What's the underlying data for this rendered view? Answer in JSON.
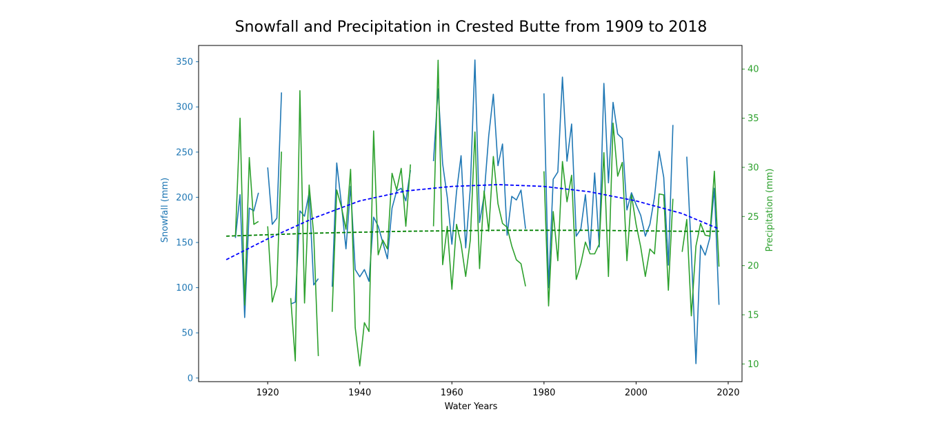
{
  "chart_data": {
    "type": "line",
    "title": "Snowfall and Precipitation in Crested Butte from 1909 to 2018",
    "xlabel": "Water Years",
    "ylabel_left": "Snowfall (mm)",
    "ylabel_right": "Precipitation (mm)",
    "xlim": [
      1905,
      2023
    ],
    "ylim_left": [
      -4,
      368
    ],
    "ylim_right": [
      8.2,
      42.4
    ],
    "x_ticks": [
      1920,
      1940,
      1960,
      1980,
      2000,
      2020
    ],
    "y_ticks_left": [
      0,
      50,
      100,
      150,
      200,
      250,
      300,
      350
    ],
    "y_ticks_right": [
      10,
      15,
      20,
      25,
      30,
      35,
      40
    ],
    "grid": false,
    "colors": {
      "snowfall": "#1f77b4",
      "precipitation": "#2ca02c",
      "snowfall_trend": "#0000ff",
      "precipitation_trend": "#008000"
    },
    "series": [
      {
        "axis": "left",
        "style": "solid",
        "color": "#1f77b4",
        "points": [
          [
            1913,
            155
          ],
          [
            1914,
            203
          ],
          [
            1915,
            67
          ],
          [
            1916,
            188
          ],
          [
            1917,
            185
          ],
          [
            1918,
            205
          ],
          [
            1919,
            null
          ],
          [
            1920,
            233
          ],
          [
            1921,
            170
          ],
          [
            1922,
            177
          ],
          [
            1923,
            316
          ],
          [
            1924,
            null
          ],
          [
            1925,
            82
          ],
          [
            1926,
            84
          ],
          [
            1927,
            185
          ],
          [
            1928,
            179
          ],
          [
            1929,
            205
          ],
          [
            1930,
            103
          ],
          [
            1931,
            110
          ],
          [
            1932,
            null
          ],
          [
            1934,
            101
          ],
          [
            1935,
            238
          ],
          [
            1936,
            193
          ],
          [
            1937,
            143
          ],
          [
            1938,
            212
          ],
          [
            1939,
            120
          ],
          [
            1940,
            112
          ],
          [
            1941,
            120
          ],
          [
            1942,
            107
          ],
          [
            1943,
            178
          ],
          [
            1944,
            168
          ],
          [
            1945,
            150
          ],
          [
            1946,
            132
          ],
          [
            1947,
            188
          ],
          [
            1948,
            207
          ],
          [
            1949,
            210
          ],
          [
            1950,
            196
          ],
          [
            1951,
            230
          ],
          [
            1952,
            null
          ],
          [
            1956,
            240
          ],
          [
            1957,
            320
          ],
          [
            1958,
            237
          ],
          [
            1959,
            200
          ],
          [
            1960,
            148
          ],
          [
            1961,
            206
          ],
          [
            1962,
            246
          ],
          [
            1963,
            144
          ],
          [
            1964,
            210
          ],
          [
            1965,
            352
          ],
          [
            1966,
            172
          ],
          [
            1967,
            202
          ],
          [
            1968,
            268
          ],
          [
            1969,
            314
          ],
          [
            1970,
            235
          ],
          [
            1971,
            259
          ],
          [
            1972,
            158
          ],
          [
            1973,
            201
          ],
          [
            1974,
            197
          ],
          [
            1975,
            208
          ],
          [
            1976,
            165
          ],
          [
            1977,
            null
          ],
          [
            1980,
            315
          ],
          [
            1981,
            100
          ],
          [
            1982,
            220
          ],
          [
            1983,
            228
          ],
          [
            1984,
            333
          ],
          [
            1985,
            240
          ],
          [
            1986,
            281
          ],
          [
            1987,
            157
          ],
          [
            1988,
            165
          ],
          [
            1989,
            203
          ],
          [
            1990,
            142
          ],
          [
            1991,
            227
          ],
          [
            1992,
            145
          ],
          [
            1993,
            326
          ],
          [
            1994,
            216
          ],
          [
            1995,
            305
          ],
          [
            1996,
            270
          ],
          [
            1997,
            265
          ],
          [
            1998,
            186
          ],
          [
            1999,
            205
          ],
          [
            2000,
            192
          ],
          [
            2001,
            180
          ],
          [
            2002,
            157
          ],
          [
            2003,
            170
          ],
          [
            2004,
            200
          ],
          [
            2005,
            251
          ],
          [
            2006,
            222
          ],
          [
            2007,
            125
          ],
          [
            2008,
            280
          ],
          [
            2009,
            null
          ],
          [
            2011,
            245
          ],
          [
            2012,
            140
          ],
          [
            2013,
            16
          ],
          [
            2014,
            147
          ],
          [
            2015,
            136
          ],
          [
            2016,
            155
          ],
          [
            2017,
            210
          ],
          [
            2018,
            81
          ]
        ]
      },
      {
        "axis": "right",
        "style": "solid",
        "color": "#2ca02c",
        "points": [
          [
            1913,
            23
          ],
          [
            1914,
            35
          ],
          [
            1915,
            16
          ],
          [
            1916,
            31
          ],
          [
            1917,
            24.2
          ],
          [
            1918,
            24.5
          ],
          [
            1919,
            null
          ],
          [
            1920,
            24
          ],
          [
            1921,
            16.3
          ],
          [
            1922,
            18
          ],
          [
            1923,
            31.6
          ],
          [
            1924,
            null
          ],
          [
            1925,
            16.7
          ],
          [
            1926,
            10.3
          ],
          [
            1927,
            37.8
          ],
          [
            1928,
            16.2
          ],
          [
            1929,
            28.2
          ],
          [
            1930,
            23.2
          ],
          [
            1931,
            10.8
          ],
          [
            1932,
            null
          ],
          [
            1934,
            15.3
          ],
          [
            1935,
            27.7
          ],
          [
            1936,
            26
          ],
          [
            1937,
            23.7
          ],
          [
            1938,
            29.8
          ],
          [
            1939,
            13.7
          ],
          [
            1940,
            9.8
          ],
          [
            1941,
            14.2
          ],
          [
            1942,
            13.3
          ],
          [
            1943,
            33.7
          ],
          [
            1944,
            21.1
          ],
          [
            1945,
            22.6
          ],
          [
            1946,
            21.7
          ],
          [
            1947,
            29.4
          ],
          [
            1948,
            27.7
          ],
          [
            1949,
            29.9
          ],
          [
            1950,
            24
          ],
          [
            1951,
            30.3
          ],
          [
            1952,
            null
          ],
          [
            1956,
            24
          ],
          [
            1957,
            40.9
          ],
          [
            1958,
            20.1
          ],
          [
            1959,
            24
          ],
          [
            1960,
            17.6
          ],
          [
            1961,
            24.2
          ],
          [
            1962,
            22.2
          ],
          [
            1963,
            18.9
          ],
          [
            1964,
            22.6
          ],
          [
            1965,
            33.6
          ],
          [
            1966,
            19.7
          ],
          [
            1967,
            27.6
          ],
          [
            1968,
            23.5
          ],
          [
            1969,
            31.1
          ],
          [
            1970,
            26.3
          ],
          [
            1971,
            24.3
          ],
          [
            1972,
            23.9
          ],
          [
            1973,
            22
          ],
          [
            1974,
            20.6
          ],
          [
            1975,
            20.2
          ],
          [
            1976,
            17.9
          ],
          [
            1977,
            null
          ],
          [
            1980,
            29.6
          ],
          [
            1981,
            15.9
          ],
          [
            1982,
            25.5
          ],
          [
            1983,
            20.5
          ],
          [
            1984,
            30.6
          ],
          [
            1985,
            26.5
          ],
          [
            1986,
            29.2
          ],
          [
            1987,
            18.6
          ],
          [
            1988,
            20.2
          ],
          [
            1989,
            22.4
          ],
          [
            1990,
            21.2
          ],
          [
            1991,
            21.2
          ],
          [
            1992,
            22.2
          ],
          [
            1993,
            31.5
          ],
          [
            1994,
            18.9
          ],
          [
            1995,
            34.5
          ],
          [
            1996,
            29.1
          ],
          [
            1997,
            30.5
          ],
          [
            1998,
            20.5
          ],
          [
            1999,
            27.2
          ],
          [
            2000,
            24.2
          ],
          [
            2001,
            21.9
          ],
          [
            2002,
            18.9
          ],
          [
            2003,
            21.7
          ],
          [
            2004,
            21.2
          ],
          [
            2005,
            27.3
          ],
          [
            2006,
            27.2
          ],
          [
            2007,
            17.5
          ],
          [
            2008,
            26.8
          ],
          [
            2009,
            null
          ],
          [
            2010,
            21.4
          ],
          [
            2011,
            24.7
          ],
          [
            2012,
            14.9
          ],
          [
            2013,
            22
          ],
          [
            2014,
            24.3
          ],
          [
            2015,
            23.1
          ],
          [
            2016,
            23
          ],
          [
            2017,
            29.6
          ],
          [
            2018,
            19.9
          ]
        ]
      },
      {
        "axis": "left",
        "style": "dashed",
        "color": "#0000ff",
        "points": [
          [
            1911,
            131
          ],
          [
            1920,
            154
          ],
          [
            1930,
            177
          ],
          [
            1940,
            196
          ],
          [
            1950,
            207
          ],
          [
            1960,
            212
          ],
          [
            1970,
            214
          ],
          [
            1980,
            212
          ],
          [
            1990,
            206
          ],
          [
            2000,
            196
          ],
          [
            2010,
            182
          ],
          [
            2018,
            165
          ]
        ]
      },
      {
        "axis": "right",
        "style": "dashed",
        "color": "#008000",
        "points": [
          [
            1911,
            23
          ],
          [
            1930,
            23.3
          ],
          [
            1950,
            23.5
          ],
          [
            1970,
            23.6
          ],
          [
            1990,
            23.6
          ],
          [
            2010,
            23.5
          ],
          [
            2018,
            23.5
          ]
        ]
      }
    ]
  }
}
